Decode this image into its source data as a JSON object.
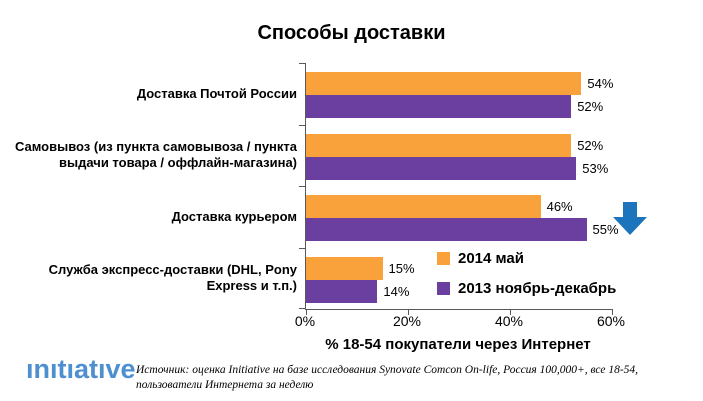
{
  "chart_data": {
    "type": "bar",
    "orientation": "horizontal",
    "title": "Способы доставки",
    "categories": [
      "Доставка Почтой России",
      "Самовывоз (из пункта самовывоза / пункта выдачи товара / оффлайн-магазина)",
      "Доставка курьером",
      "Служба экспресс-доставки (DHL, Pony Express и т.п.)"
    ],
    "series": [
      {
        "name": "2014 май",
        "color": "#F9A23B",
        "values": [
          54,
          52,
          46,
          15
        ]
      },
      {
        "name": "2013 ноябрь-декабрь",
        "color": "#6B3FA0",
        "values": [
          52,
          53,
          55,
          14
        ]
      }
    ],
    "value_suffix": "%",
    "xlabel": "% 18-54 покупатели через Интернет",
    "x_ticks": [
      "0%",
      "20%",
      "40%",
      "60%"
    ],
    "xlim": [
      0,
      60
    ],
    "grid": false,
    "legend_position": "inside bottom-right of plot",
    "axis_color": "#595959",
    "annotation": {
      "type": "down-arrow",
      "color": "#1C75BC",
      "target": "Доставка курьером — 2013 ноябрь-декабрь (55%)"
    }
  },
  "footer": {
    "logo_text": "ınıtıatıve",
    "logo_color": "#4E8FD0",
    "source_text": "Источник: оценка Initiative на базе исследования Synovate Comcon  On-life, Россия 100,000+, все 18-54, пользователи Интернета за неделю"
  }
}
